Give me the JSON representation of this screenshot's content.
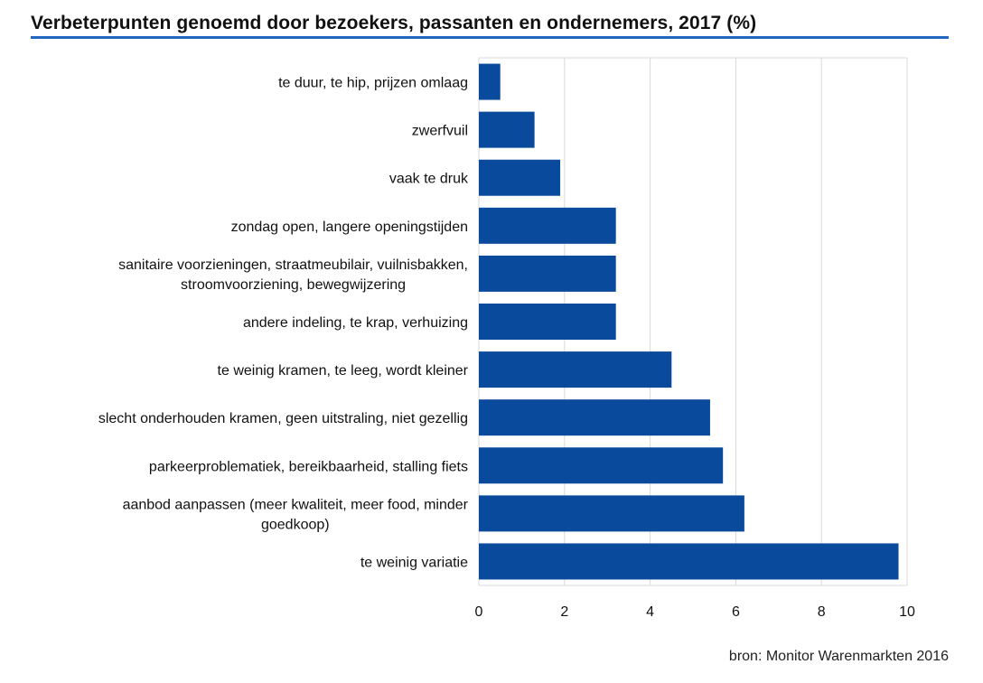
{
  "title": "Verbeterpunten genoemd door bezoekers, passanten en ondernemers, 2017 (%)",
  "source": "bron: Monitor Warenmarkten 2016",
  "colors": {
    "bar": "#0a4a9c",
    "grid": "#d9d9d9",
    "title_rule": "#2166c0"
  },
  "chart_data": {
    "type": "bar",
    "orientation": "horizontal",
    "title": "Verbeterpunten genoemd door bezoekers, passanten en ondernemers, 2017 (%)",
    "xlabel": "",
    "ylabel": "",
    "xlim": [
      0,
      10
    ],
    "xticks": [
      0,
      2,
      4,
      6,
      8,
      10
    ],
    "grid": true,
    "categories": [
      [
        "te duur, te hip, prijzen omlaag"
      ],
      [
        "zwerfvuil"
      ],
      [
        "vaak te druk"
      ],
      [
        "zondag open, langere openingstijden"
      ],
      [
        "sanitaire voorzieningen, straatmeubilair, vuilnisbakken,",
        "stroomvoorziening, bewegwijzering"
      ],
      [
        "andere indeling, te krap, verhuizing"
      ],
      [
        "te weinig kramen, te leeg, wordt kleiner"
      ],
      [
        "slecht onderhouden kramen, geen uitstraling, niet gezellig"
      ],
      [
        "parkeerproblematiek, bereikbaarheid, stalling fiets"
      ],
      [
        "aanbod aanpassen (meer kwaliteit, meer food, minder",
        "goedkoop)"
      ],
      [
        "te weinig variatie"
      ]
    ],
    "values": [
      0.5,
      1.3,
      1.9,
      3.2,
      3.2,
      3.2,
      4.5,
      5.4,
      5.7,
      6.2,
      9.8
    ]
  }
}
